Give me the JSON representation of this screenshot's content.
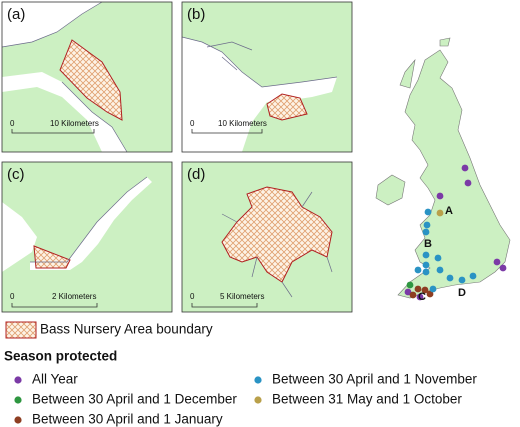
{
  "panels": [
    {
      "label": "(a)",
      "scale_start": "0",
      "scale_end": "10 Kilometers"
    },
    {
      "label": "(b)",
      "scale_start": "0",
      "scale_end": "10 Kilometers"
    },
    {
      "label": "(c)",
      "scale_start": "0",
      "scale_end": "2 Kilometers"
    },
    {
      "label": "(d)",
      "scale_start": "0",
      "scale_end": "5 Kilometers"
    }
  ],
  "legend": {
    "boundary": "Bass Nursery Area boundary",
    "title": "Season protected",
    "seasons": [
      {
        "name": "All Year",
        "color": "#7b3aa6"
      },
      {
        "name": "Between 30 April and 1 December",
        "color": "#2e9640"
      },
      {
        "name": "Between 30 April and 1 January",
        "color": "#8e3e22"
      },
      {
        "name": "Between 30 April and 1 November",
        "color": "#2a93c4"
      },
      {
        "name": "Between 31 May and 1 October",
        "color": "#b9a04a"
      }
    ]
  },
  "map_labels": [
    "A",
    "B",
    "C",
    "D"
  ]
}
